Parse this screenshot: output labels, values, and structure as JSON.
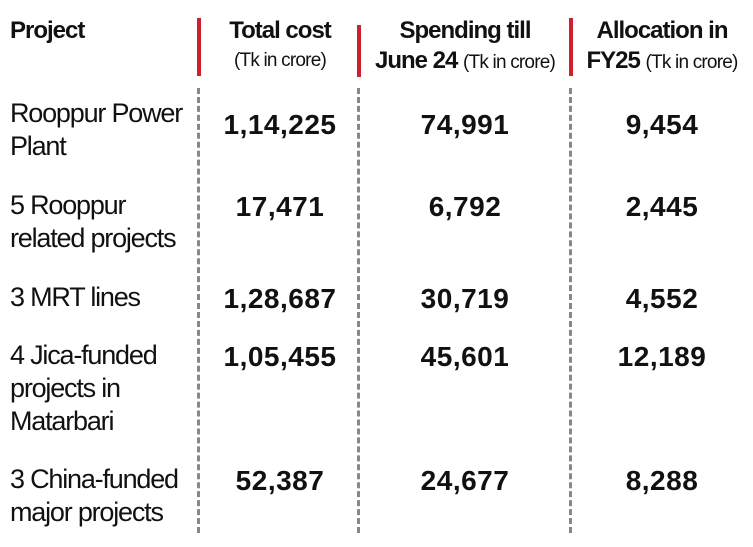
{
  "headers": {
    "project": "Project",
    "total_cost": {
      "title": "Total cost",
      "unit": "(Tk in crore)"
    },
    "spending": {
      "title": "Spending till",
      "title2": "June 24",
      "unit": "(Tk in crore)"
    },
    "allocation": {
      "title": "Allocation in",
      "title2": "FY25",
      "unit": "(Tk in crore)"
    }
  },
  "rows": [
    {
      "project": "Rooppur Power Plant",
      "total_cost": "1,14,225",
      "spending": "74,991",
      "allocation": "9,454"
    },
    {
      "project": "5 Rooppur related projects",
      "total_cost": "17,471",
      "spending": "6,792",
      "allocation": "2,445"
    },
    {
      "project": "3 MRT lines",
      "total_cost": "1,28,687",
      "spending": "30,719",
      "allocation": "4,552"
    },
    {
      "project": "4 Jica-funded projects in Matarbari",
      "total_cost": "1,05,455",
      "spending": "45,601",
      "allocation": "12,189"
    },
    {
      "project": "3 China-funded major projects",
      "total_cost": "52,387",
      "spending": "24,677",
      "allocation": "8,288"
    }
  ],
  "colors": {
    "accent": "#d0202e",
    "divider": "#888888"
  }
}
